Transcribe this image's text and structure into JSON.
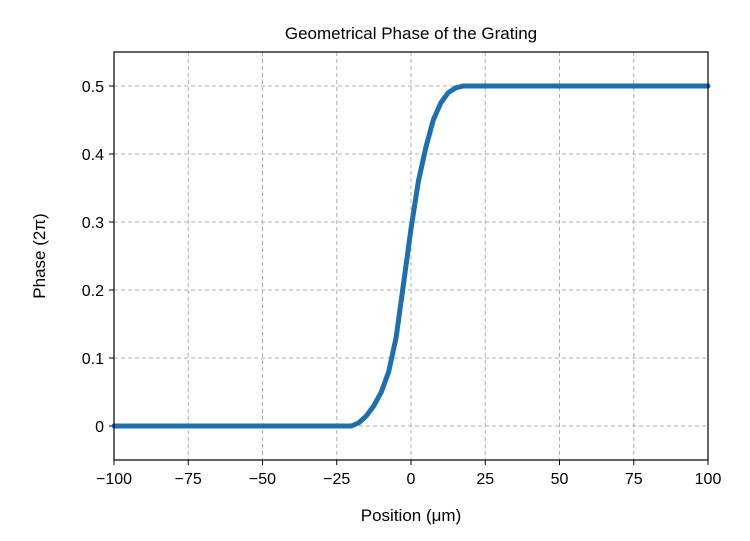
{
  "chart_data": {
    "type": "line",
    "title": "Geometrical Phase of the Grating",
    "xlabel": "Position (μm)",
    "ylabel": "Phase (2π)",
    "xlim": [
      -100,
      100
    ],
    "ylim": [
      -0.05,
      0.55
    ],
    "xticks": [
      -100,
      -75,
      -50,
      -25,
      0,
      25,
      50,
      75,
      100
    ],
    "xtick_labels": [
      "−100",
      "−75",
      "−50",
      "−25",
      "0",
      "25",
      "50",
      "75",
      "100"
    ],
    "yticks": [
      0,
      0.1,
      0.2,
      0.3,
      0.4,
      0.5
    ],
    "ytick_labels": [
      "0",
      "0.1",
      "0.2",
      "0.3",
      "0.4",
      "0.5"
    ],
    "grid": true,
    "color": "#1f6fad",
    "series": [
      {
        "x": [
          -100,
          -50,
          -25,
          -20,
          -17.5,
          -15,
          -12.5,
          -10,
          -7.5,
          -5,
          -2.5,
          0,
          2.5,
          5,
          7.5,
          10,
          12.5,
          15,
          17.5,
          20,
          50,
          100
        ],
        "y": [
          0,
          0,
          0,
          0,
          0.005,
          0.015,
          0.03,
          0.05,
          0.08,
          0.13,
          0.21,
          0.29,
          0.36,
          0.41,
          0.45,
          0.475,
          0.49,
          0.497,
          0.5,
          0.5,
          0.5,
          0.5
        ]
      }
    ]
  }
}
